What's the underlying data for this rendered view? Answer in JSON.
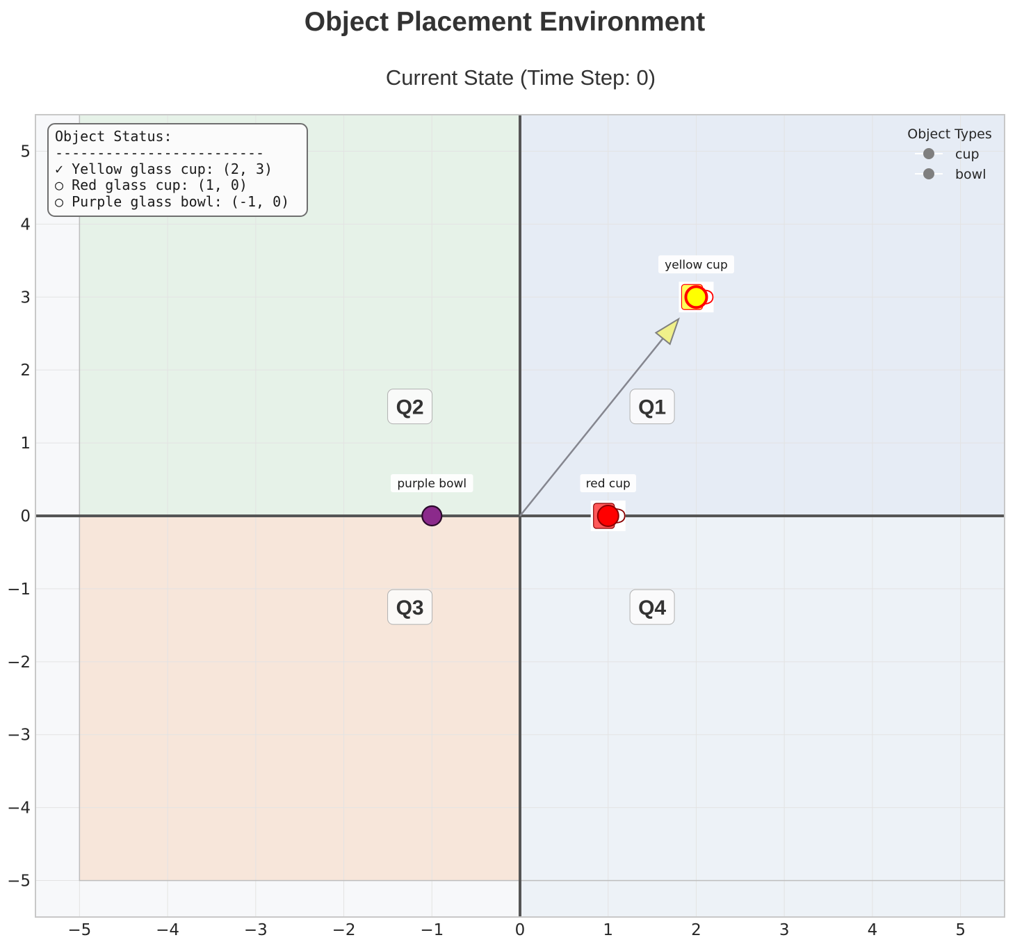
{
  "figure": {
    "title": "Object Placement Environment",
    "subtitle": "Current State (Time Step: 0)"
  },
  "status_box": {
    "title": "Object Status:",
    "separator": "-------------------------",
    "lines": [
      "✓ Yellow glass cup: (2, 3)",
      "○ Red glass cup: (1, 0)",
      "○ Purple glass bowl: (-1, 0)"
    ]
  },
  "legend": {
    "title": "Object Types",
    "items": [
      "cup",
      "bowl"
    ]
  },
  "chart_data": {
    "type": "scatter",
    "xlim": [
      -5.5,
      5.5
    ],
    "ylim": [
      -5.5,
      5.5
    ],
    "x_ticks": [
      -5,
      -4,
      -3,
      -2,
      -1,
      0,
      1,
      2,
      3,
      4,
      5
    ],
    "y_ticks": [
      -5,
      -4,
      -3,
      -2,
      -1,
      0,
      1,
      2,
      3,
      4,
      5
    ],
    "x_tick_labels": [
      "−5",
      "−4",
      "−3",
      "−2",
      "−1",
      "0",
      "1",
      "2",
      "3",
      "4",
      "5"
    ],
    "y_tick_labels": [
      "−5",
      "−4",
      "−3",
      "−2",
      "−1",
      "0",
      "1",
      "2",
      "3",
      "4",
      "5"
    ],
    "grid": true,
    "quadrants": [
      {
        "label": "Q1",
        "x": 1.5,
        "y": 1.5,
        "color": "#e6ecf5"
      },
      {
        "label": "Q2",
        "x": -1.25,
        "y": 1.5,
        "color": "#e6f2e8"
      },
      {
        "label": "Q3",
        "x": -1.25,
        "y": -1.25,
        "color": "#f7e6da"
      },
      {
        "label": "Q4",
        "x": 1.5,
        "y": -1.25,
        "color": "#edf2f7"
      }
    ],
    "objects": [
      {
        "name": "yellow cup",
        "type": "cup",
        "x": 2,
        "y": 3,
        "color": "#ffff00",
        "edge": "#ff0000",
        "placed": true
      },
      {
        "name": "red cup",
        "type": "cup",
        "x": 1,
        "y": 0,
        "color": "#ff0000",
        "edge": "#8b0000",
        "placed": false
      },
      {
        "name": "purple bowl",
        "type": "bowl",
        "x": -1,
        "y": 0,
        "color": "#8b2a8b",
        "edge": "#2b0a2b",
        "placed": false
      }
    ],
    "arrow": {
      "from": [
        0,
        0
      ],
      "to": [
        1.8,
        2.7
      ],
      "color": "#f0f08a"
    },
    "colors": {
      "axis": "#555555",
      "grid": "#e3e3e3",
      "plot_bg": "#f7f8fa",
      "legend_marker": "#7f7f7f"
    }
  }
}
